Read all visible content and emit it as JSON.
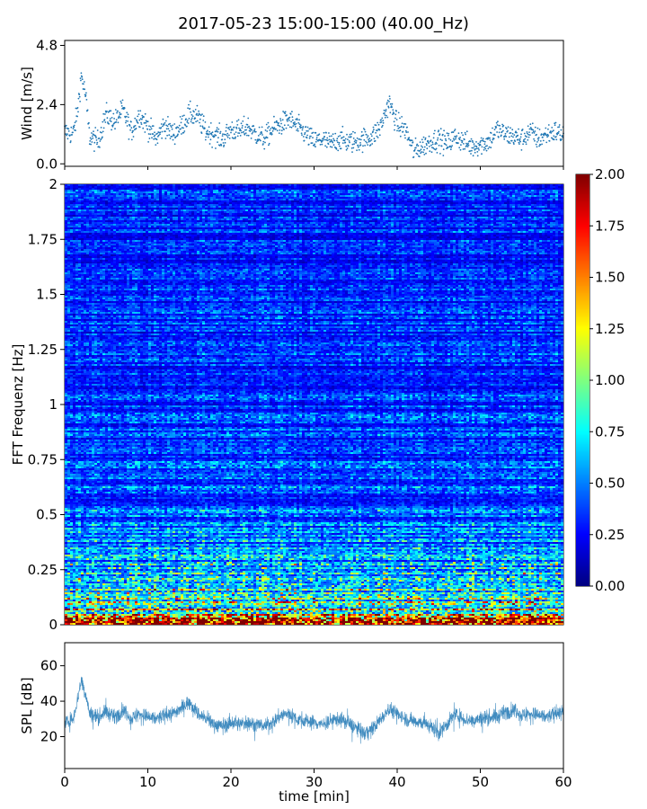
{
  "figure": {
    "title": "2017-05-23 15:00-15:00 (40.00_Hz)"
  },
  "chart_data": [
    {
      "id": "wind",
      "type": "scatter",
      "ylabel": "Wind [m/s]",
      "xlim": [
        0,
        60
      ],
      "ylim": [
        -0.1,
        5.0
      ],
      "yticks": [
        0.0,
        2.4,
        4.8
      ],
      "ytick_labels": [
        "0.0",
        "2.4",
        "4.8"
      ],
      "color": "#1f77b4",
      "series": [
        {
          "x": [
            0,
            1,
            1.5,
            2,
            2.5,
            3,
            4,
            5,
            6,
            7,
            8,
            9,
            10,
            11,
            12,
            13,
            14,
            15,
            16,
            17,
            18,
            19,
            20,
            21,
            22,
            23,
            24,
            25,
            26,
            27,
            28,
            29,
            30,
            31,
            32,
            33,
            34,
            35,
            36,
            37,
            38,
            39,
            40,
            41,
            42,
            43,
            44,
            45,
            46,
            47,
            48,
            49,
            50,
            51,
            52,
            53,
            54,
            55,
            56,
            57,
            58,
            59,
            60
          ],
          "y": [
            1.3,
            1.2,
            2.0,
            3.6,
            2.8,
            1.1,
            0.9,
            2.0,
            1.7,
            2.2,
            1.3,
            2.0,
            1.5,
            1.0,
            1.6,
            1.2,
            1.5,
            2.0,
            1.9,
            1.3,
            1.2,
            1.0,
            1.4,
            1.3,
            1.5,
            1.2,
            1.0,
            1.4,
            1.6,
            1.8,
            1.5,
            1.2,
            0.9,
            1.0,
            0.8,
            1.0,
            0.9,
            0.9,
            1.0,
            1.1,
            1.5,
            2.5,
            1.6,
            1.4,
            0.5,
            0.7,
            0.9,
            1.0,
            0.8,
            1.1,
            0.9,
            0.7,
            0.8,
            0.9,
            1.4,
            1.2,
            1.1,
            1.0,
            1.3,
            1.0,
            1.2,
            1.3,
            1.2
          ]
        }
      ]
    },
    {
      "id": "spectrogram",
      "type": "heatmap",
      "ylabel": "FFT Frequenz [Hz]",
      "xlim": [
        0,
        60
      ],
      "ylim": [
        0,
        2
      ],
      "yticks": [
        0,
        0.25,
        0.5,
        0.75,
        1,
        1.25,
        1.5,
        1.75,
        2
      ],
      "ytick_labels": [
        "0",
        "0.25",
        "0.5",
        "0.75",
        "1",
        "1.25",
        "1.5",
        "1.75",
        "2"
      ],
      "colormap": "jet",
      "clim": [
        0,
        2
      ],
      "colorbar_ticks": [
        0.0,
        0.25,
        0.5,
        0.75,
        1.0,
        1.25,
        1.5,
        1.75,
        2.0
      ],
      "colorbar_tick_labels": [
        "0.00",
        "0.25",
        "0.50",
        "0.75",
        "1.00",
        "1.25",
        "1.50",
        "1.75",
        "2.00"
      ],
      "mean_profile": {
        "freq_hz": [
          0.0,
          0.04,
          0.08,
          0.12,
          0.2,
          0.3,
          0.5,
          0.75,
          1.0,
          1.5,
          2.0
        ],
        "value": [
          1.7,
          1.35,
          1.0,
          0.85,
          0.7,
          0.55,
          0.45,
          0.38,
          0.35,
          0.33,
          0.32
        ]
      }
    },
    {
      "id": "spl",
      "type": "line",
      "ylabel": "SPL [dB]",
      "xlabel": "time [min]",
      "xlim": [
        0,
        60
      ],
      "ylim": [
        2,
        73
      ],
      "yticks": [
        20,
        40,
        60
      ],
      "ytick_labels": [
        "20",
        "40",
        "60"
      ],
      "xticks": [
        0,
        10,
        20,
        30,
        40,
        50,
        60
      ],
      "xtick_labels": [
        "0",
        "10",
        "20",
        "30",
        "40",
        "50",
        "60"
      ],
      "color": "#1f77b4",
      "series": [
        {
          "x": [
            0,
            1,
            1.5,
            2,
            2.5,
            3,
            4,
            5,
            6,
            7,
            8,
            9,
            10,
            11,
            12,
            13,
            14,
            15,
            16,
            17,
            18,
            19,
            20,
            21,
            22,
            23,
            24,
            25,
            26,
            27,
            28,
            29,
            30,
            31,
            32,
            33,
            34,
            35,
            36,
            37,
            38,
            39,
            40,
            41,
            42,
            43,
            44,
            45,
            46,
            47,
            48,
            49,
            50,
            51,
            52,
            53,
            54,
            55,
            56,
            57,
            58,
            59,
            60
          ],
          "y": [
            28,
            30,
            40,
            52,
            44,
            33,
            31,
            34,
            31,
            35,
            30,
            33,
            31,
            30,
            32,
            33,
            36,
            40,
            33,
            30,
            27,
            26,
            28,
            27,
            28,
            27,
            26,
            28,
            32,
            33,
            30,
            29,
            28,
            27,
            29,
            30,
            28,
            25,
            22,
            24,
            30,
            36,
            33,
            30,
            29,
            28,
            26,
            22,
            27,
            33,
            30,
            29,
            30,
            31,
            31,
            34,
            35,
            32,
            33,
            32,
            31,
            33,
            34
          ]
        }
      ]
    }
  ]
}
